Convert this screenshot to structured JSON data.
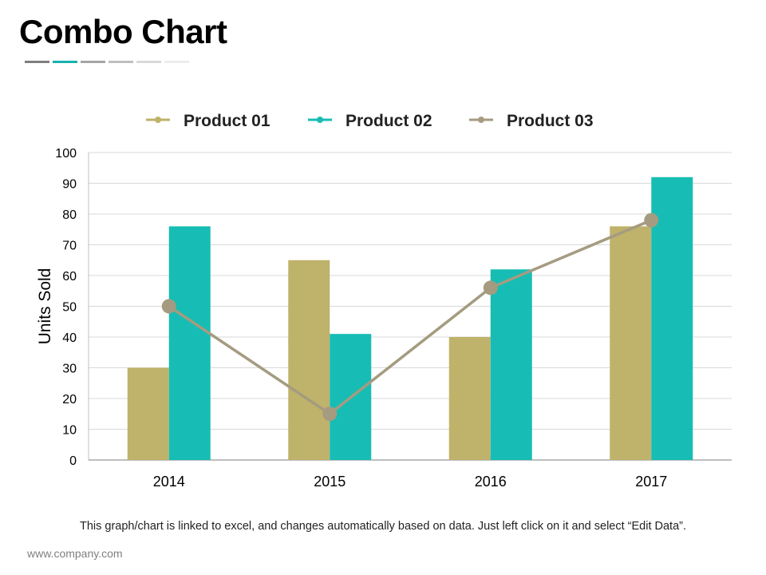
{
  "page": {
    "title": "Combo Chart",
    "title_underline_colors": [
      "#7f7f7f",
      "#17b3ad",
      "#a6a6a6",
      "#bfbfbf",
      "#d9d9d9",
      "#ececec"
    ],
    "footnote": "This graph/chart is linked to excel, and changes automatically based on data. Just left click on it and select “Edit Data”.",
    "website": "www.company.com"
  },
  "chart_data": {
    "type": "bar",
    "title": "",
    "categories": [
      "2014",
      "2015",
      "2016",
      "2017"
    ],
    "series": [
      {
        "name": "Product 01",
        "type": "bar",
        "color": "#bfb26a",
        "values": [
          30,
          65,
          40,
          76
        ]
      },
      {
        "name": "Product 02",
        "type": "bar",
        "color": "#17bdb4",
        "values": [
          76,
          41,
          62,
          92
        ]
      },
      {
        "name": "Product 03",
        "type": "line",
        "color": "#a59b80",
        "values": [
          50,
          15,
          56,
          78
        ]
      }
    ],
    "xlabel": "",
    "ylabel": "Units Sold",
    "ylim": [
      0,
      100
    ],
    "yticks": [
      "0",
      "10",
      "20",
      "30",
      "40",
      "50",
      "60",
      "70",
      "80",
      "90",
      "100"
    ],
    "grid": true,
    "legend_position": "top"
  }
}
